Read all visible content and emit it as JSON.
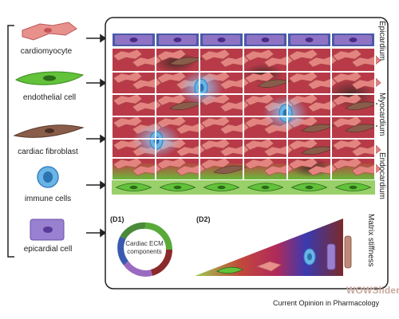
{
  "legend": {
    "items": [
      {
        "id": "cardiomyocyte",
        "label": "cardiomyocyte"
      },
      {
        "id": "endothelial",
        "label": "endothelial cell"
      },
      {
        "id": "fibroblast",
        "label": "cardiac fibroblast"
      },
      {
        "id": "immune",
        "label": "immune cells"
      },
      {
        "id": "epicardial",
        "label": "epicardial cell"
      }
    ]
  },
  "layers": {
    "epicardium": "Epicardium",
    "myocardium": "Myocardium",
    "endocardium": "Endocardium"
  },
  "panels": {
    "d1_label": "(D1)",
    "d2_label": "(D2)",
    "ecm_line1": "Cardiac ECM",
    "ecm_line2": "components",
    "matrix_stiffness_line1": "Matrix",
    "matrix_stiffness_line2": "stiffness"
  },
  "footer": {
    "source": "Current Opinion in Pharmacology",
    "watermark": "WOWSlider"
  },
  "colors": {
    "epicardial_cell": "#8e73c4",
    "epicardium_band": "#4a5aa8",
    "myocardium_tissue": "#b83a48",
    "cardiomyocyte": "#e07a78",
    "fibroblast": "#8a5a48",
    "immune": "#5aa8e0",
    "endothelial": "#5ab83a",
    "endocardium_band": "#9ad06a"
  }
}
